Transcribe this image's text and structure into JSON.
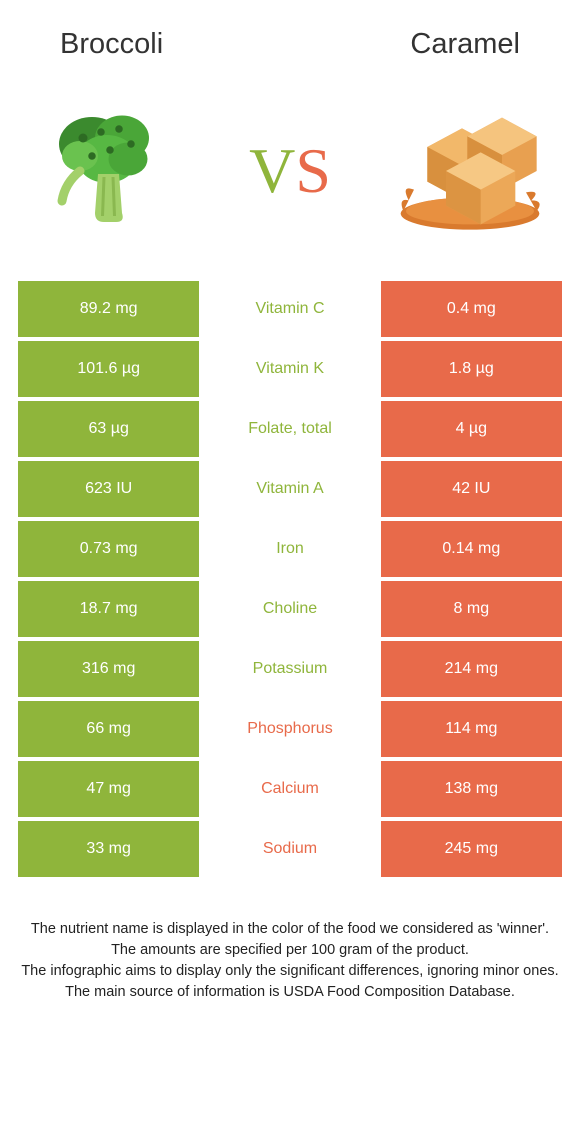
{
  "header": {
    "leftTitle": "Broccoli",
    "rightTitle": "Caramel"
  },
  "vs": {
    "vColor": "#8fb53b",
    "sColor": "#e86a4a",
    "vLetter": "V",
    "sLetter": "S"
  },
  "colors": {
    "leftBg": "#8fb53b",
    "rightBg": "#e86a4a",
    "leftText": "#8fb53b",
    "rightText": "#e86a4a",
    "cellText": "#ffffff"
  },
  "rows": [
    {
      "left": "89.2 mg",
      "mid": "Vitamin C",
      "right": "0.4 mg",
      "winner": "left"
    },
    {
      "left": "101.6 µg",
      "mid": "Vitamin K",
      "right": "1.8 µg",
      "winner": "left"
    },
    {
      "left": "63 µg",
      "mid": "Folate, total",
      "right": "4 µg",
      "winner": "left"
    },
    {
      "left": "623 IU",
      "mid": "Vitamin A",
      "right": "42 IU",
      "winner": "left"
    },
    {
      "left": "0.73 mg",
      "mid": "Iron",
      "right": "0.14 mg",
      "winner": "left"
    },
    {
      "left": "18.7 mg",
      "mid": "Choline",
      "right": "8 mg",
      "winner": "left"
    },
    {
      "left": "316 mg",
      "mid": "Potassium",
      "right": "214 mg",
      "winner": "left"
    },
    {
      "left": "66 mg",
      "mid": "Phosphorus",
      "right": "114 mg",
      "winner": "right"
    },
    {
      "left": "47 mg",
      "mid": "Calcium",
      "right": "138 mg",
      "winner": "right"
    },
    {
      "left": "33 mg",
      "mid": "Sodium",
      "right": "245 mg",
      "winner": "right"
    }
  ],
  "footer": {
    "line1": "The nutrient name is displayed in the color of the food we considered as 'winner'.",
    "line2": "The amounts are specified per 100 gram of the product.",
    "line3": "The infographic aims to display only the significant differences, ignoring minor ones.",
    "line4": "The main source of information is USDA Food Composition Database."
  }
}
